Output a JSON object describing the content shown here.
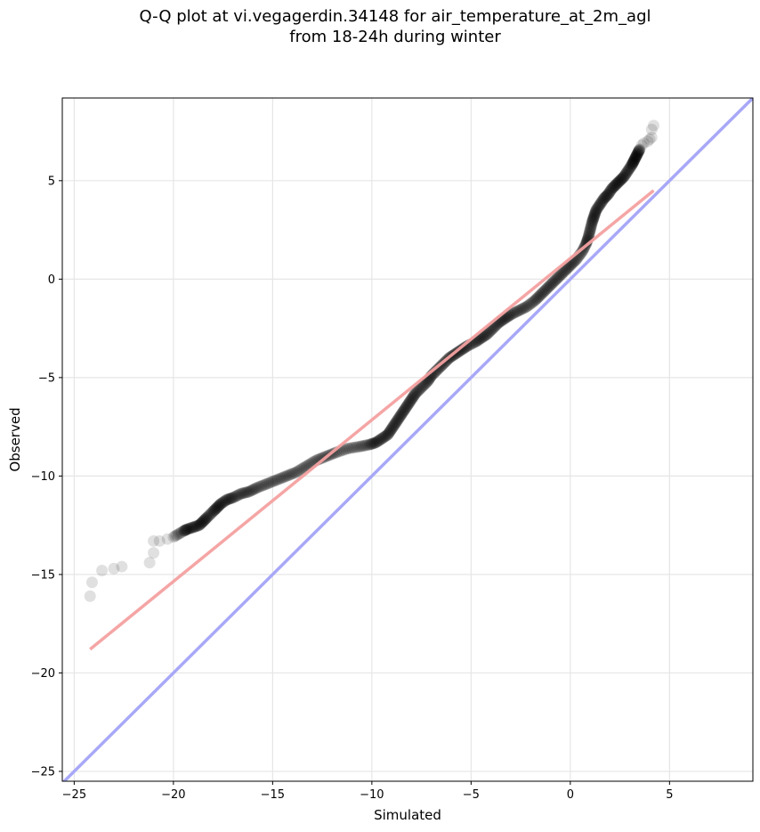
{
  "chart_data": {
    "type": "scatter",
    "title": "Q-Q plot at vi.vegagerdin.34148 for air_temperature_at_2m_agl",
    "subtitle": "from 18-24h during winter",
    "xlabel": "Simulated",
    "ylabel": "Observed",
    "xlim": [
      -25.6,
      9.2
    ],
    "ylim": [
      -25.5,
      9.2
    ],
    "xticks": [
      -25,
      -20,
      -15,
      -10,
      -5,
      0,
      5
    ],
    "yticks": [
      -25,
      -20,
      -15,
      -10,
      -5,
      0,
      5
    ],
    "tick_labels": [
      "−25",
      "−20",
      "−15",
      "−10",
      "−5",
      "0",
      "5"
    ],
    "grid": true,
    "series": [
      {
        "kind": "quantile-points",
        "color": "#000000",
        "x": [
          -24.2,
          -24.1,
          -23.6,
          -23.0,
          -22.6,
          -21.2,
          -21.0,
          -21.0,
          -20.7,
          -20.3,
          -20.0,
          -19.5,
          -19.3,
          -19.0,
          -18.7,
          -18.5,
          -18.3,
          -18.0,
          -17.8,
          -17.6,
          -17.3,
          -17.0,
          -16.6,
          -16.2,
          -15.8,
          -15.3,
          -14.8,
          -14.3,
          -13.8,
          -13.3,
          -12.8,
          -12.3,
          -11.8,
          -11.2,
          -10.6,
          -10.1,
          -9.8,
          -9.5,
          -9.2,
          -9.0,
          -8.8,
          -8.6,
          -8.4,
          -8.2,
          -8.0,
          -7.8,
          -7.5,
          -7.2,
          -7.0,
          -6.7,
          -6.4,
          -6.1,
          -5.8,
          -5.5,
          -5.2,
          -4.8,
          -4.5,
          -4.2,
          -3.9,
          -3.6,
          -3.3,
          -3.0,
          -2.6,
          -2.2,
          -1.8,
          -1.5,
          -1.2,
          -0.9,
          -0.6,
          -0.3,
          0.0,
          0.3,
          0.6,
          0.8,
          0.9,
          1.0,
          1.1,
          1.2,
          1.3,
          1.5,
          1.7,
          1.9,
          2.1,
          2.3,
          2.5,
          2.7,
          2.9,
          3.1,
          3.2,
          3.3,
          3.4,
          3.5,
          3.6,
          3.7,
          3.9,
          4.0,
          4.1,
          4.1,
          4.2
        ],
        "y": [
          -16.1,
          -15.4,
          -14.8,
          -14.7,
          -14.6,
          -14.4,
          -13.9,
          -13.3,
          -13.3,
          -13.2,
          -13.1,
          -12.8,
          -12.7,
          -12.6,
          -12.5,
          -12.3,
          -12.1,
          -11.8,
          -11.6,
          -11.4,
          -11.2,
          -11.1,
          -10.9,
          -10.8,
          -10.6,
          -10.4,
          -10.2,
          -10.0,
          -9.8,
          -9.5,
          -9.2,
          -9.0,
          -8.8,
          -8.6,
          -8.5,
          -8.4,
          -8.3,
          -8.1,
          -7.9,
          -7.6,
          -7.3,
          -7.0,
          -6.7,
          -6.4,
          -6.1,
          -5.8,
          -5.5,
          -5.2,
          -4.9,
          -4.6,
          -4.3,
          -4.0,
          -3.8,
          -3.6,
          -3.4,
          -3.2,
          -3.0,
          -2.8,
          -2.5,
          -2.2,
          -2.0,
          -1.8,
          -1.6,
          -1.4,
          -1.1,
          -0.8,
          -0.5,
          -0.2,
          0.1,
          0.4,
          0.7,
          1.0,
          1.4,
          1.8,
          2.1,
          2.5,
          2.9,
          3.2,
          3.5,
          3.8,
          4.1,
          4.3,
          4.6,
          4.8,
          5.0,
          5.2,
          5.5,
          5.8,
          6.0,
          6.2,
          6.4,
          6.6,
          6.8,
          6.9,
          7.0,
          7.1,
          7.2,
          7.6,
          7.8
        ]
      },
      {
        "kind": "fit-line",
        "color": "#f4a0a0",
        "x": [
          -24.2,
          4.2
        ],
        "y": [
          -18.8,
          4.5
        ]
      },
      {
        "kind": "identity-line",
        "color": "#a8a8f8",
        "x": [
          -25.6,
          9.2
        ],
        "y": [
          -25.6,
          9.2
        ]
      }
    ]
  }
}
